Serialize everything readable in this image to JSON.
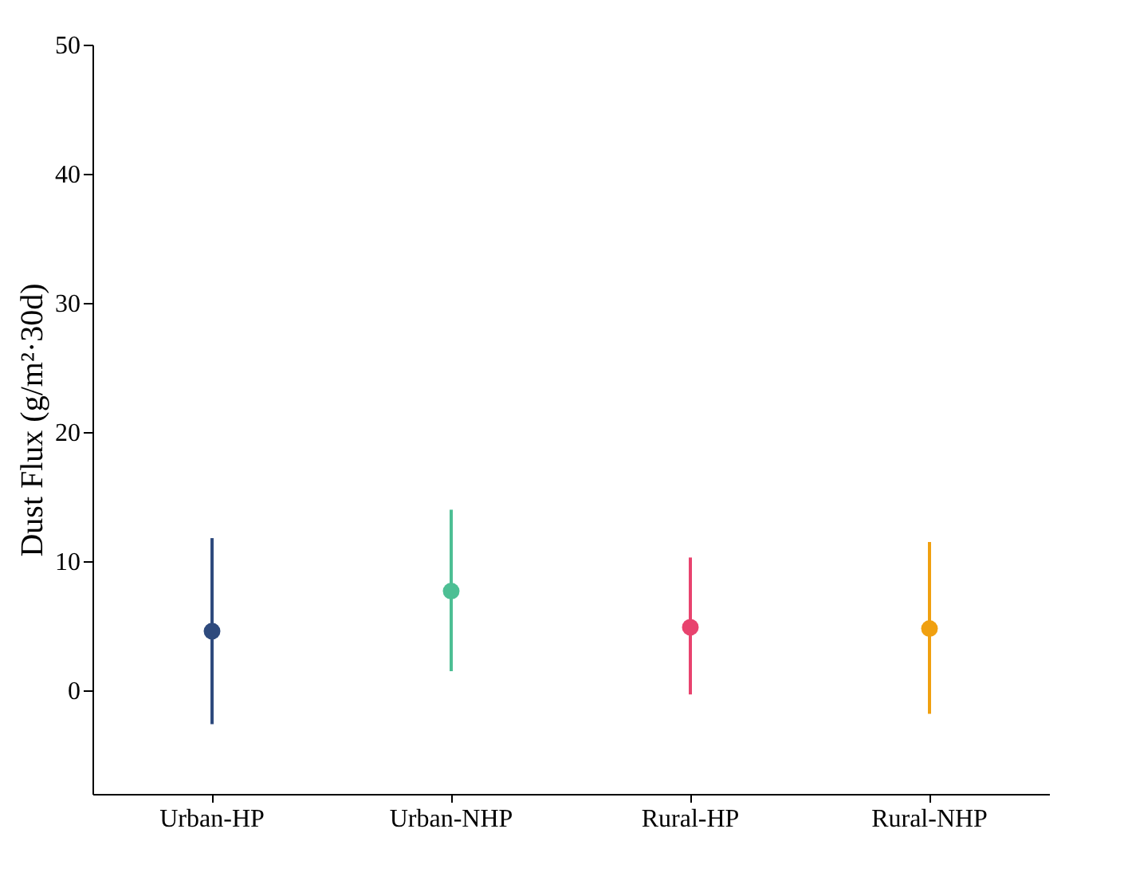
{
  "chart_data": {
    "type": "scatter",
    "ylabel": "Dust Flux (g/m²·30d)",
    "categories": [
      "Urban-HP",
      "Urban-NHP",
      "Rural-HP",
      "Rural-NHP"
    ],
    "values": [
      4.6,
      7.7,
      4.9,
      4.8
    ],
    "colors": [
      "#2e4a7d",
      "#4dbf94",
      "#e8436e",
      "#f0a010"
    ],
    "errors": [
      [
        -2.6,
        11.8
      ],
      [
        1.5,
        14
      ],
      [
        -0.3,
        10.3
      ],
      [
        -1.8,
        11.5
      ]
    ],
    "ylim": [
      -8,
      50
    ],
    "yticks": [
      0,
      10,
      20,
      30,
      40,
      50
    ],
    "grid": false,
    "marker": "circle"
  }
}
